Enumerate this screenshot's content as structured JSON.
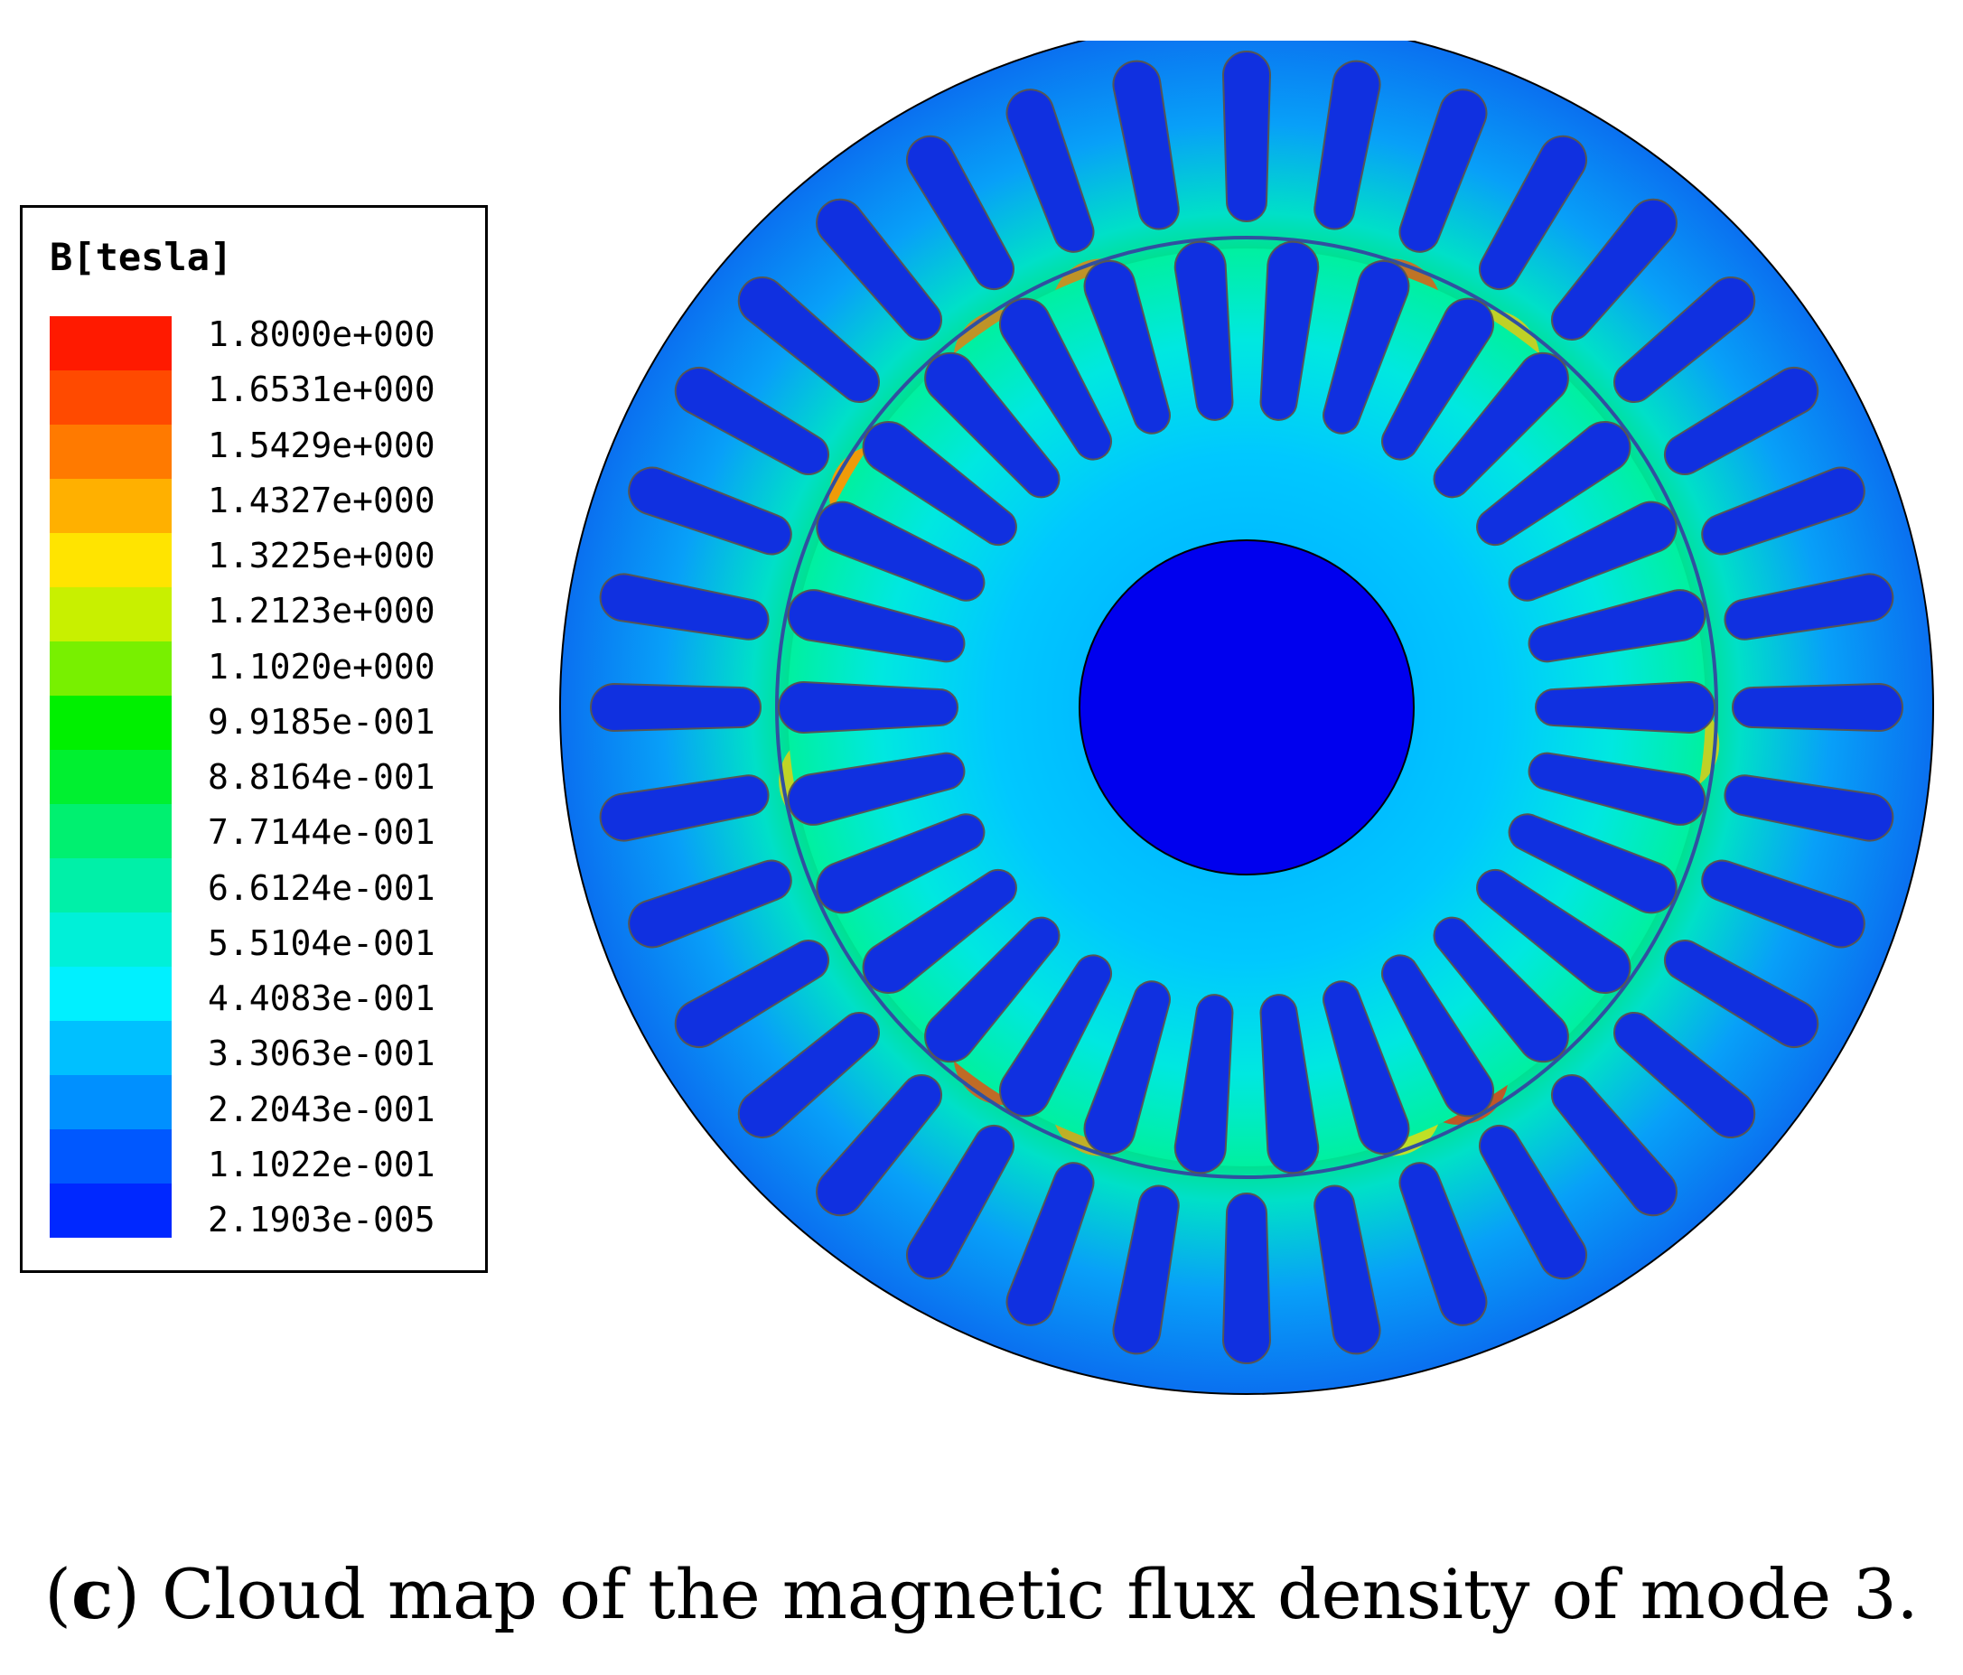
{
  "legend": {
    "title": "B[tesla]",
    "labels": [
      "1.8000e+000",
      "1.6531e+000",
      "1.5429e+000",
      "1.4327e+000",
      "1.3225e+000",
      "1.2123e+000",
      "1.1020e+000",
      "9.9185e-001",
      "8.8164e-001",
      "7.7144e-001",
      "6.6124e-001",
      "5.5104e-001",
      "4.4083e-001",
      "3.3063e-001",
      "2.2043e-001",
      "1.1022e-001",
      "2.1903e-005"
    ],
    "colors": [
      "#ff1a00",
      "#ff4a00",
      "#ff7a00",
      "#ffb000",
      "#ffe400",
      "#c8f000",
      "#78f000",
      "#00f000",
      "#00f030",
      "#00f070",
      "#00f0a8",
      "#00f0d8",
      "#00f0ff",
      "#00c0ff",
      "#0090ff",
      "#0058ff",
      "#0028ff"
    ]
  },
  "caption": {
    "letter": "c",
    "text": " Cloud map of the magnetic flux density of mode 3."
  },
  "figure": {
    "outer_color": "#0a78f0",
    "shaft_color": "#0000ee",
    "slot_color": "#1030e0",
    "slot_outline_color": "#555555"
  }
}
